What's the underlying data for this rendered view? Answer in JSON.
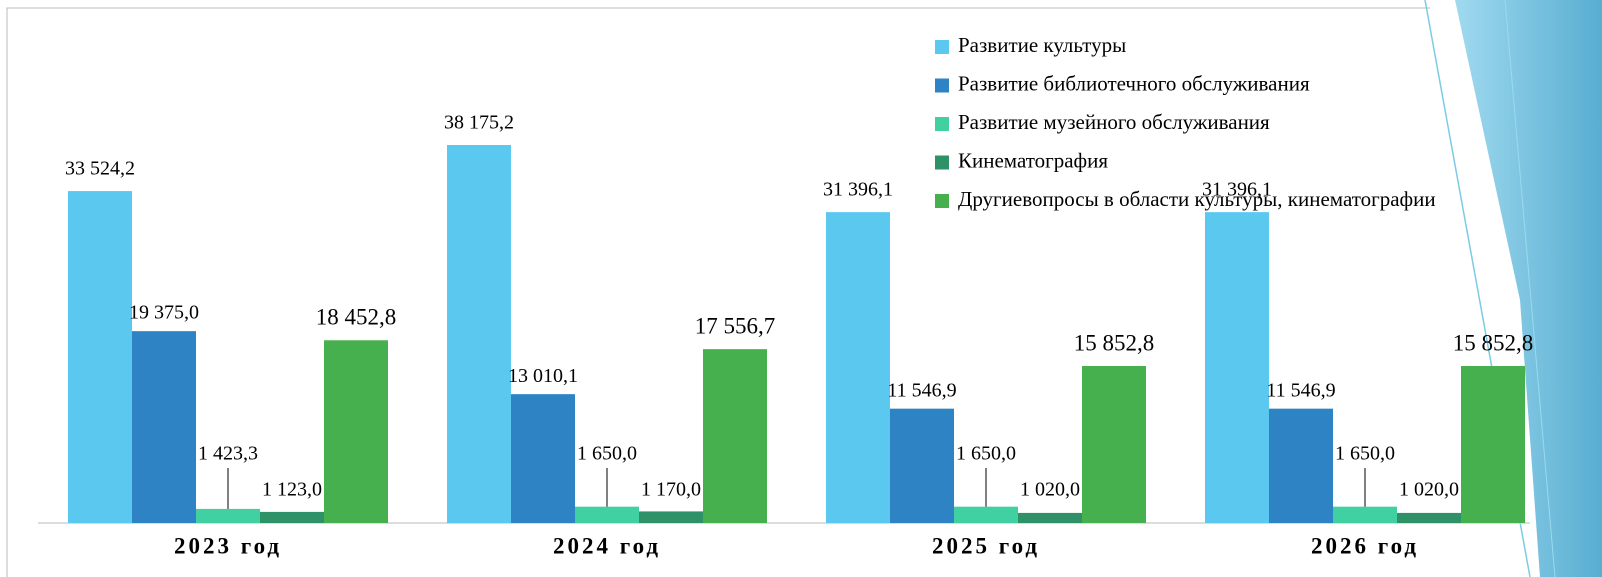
{
  "chart_data": {
    "type": "bar",
    "categories": [
      "2023 год",
      "2024 год",
      "2025 год",
      "2026 год"
    ],
    "series": [
      {
        "name": "Развитие культуры",
        "color": "#5bc9ef",
        "values": [
          33524.2,
          38175.2,
          31396.1,
          31396.1
        ],
        "value_labels": [
          "33 524,2",
          "38 175,2",
          "31 396,1",
          "31 396,1"
        ]
      },
      {
        "name": "Развитие библиотечного обслуживания",
        "color": "#2e83c4",
        "values": [
          19375.0,
          13010.1,
          11546.9,
          11546.9
        ],
        "value_labels": [
          "19 375,0",
          "13 010,1",
          "11 546,9",
          "11 546,9"
        ]
      },
      {
        "name": "Развитие музейного обслуживания",
        "color": "#40d0a2",
        "values": [
          1423.3,
          1650.0,
          1650.0,
          1650.0
        ],
        "value_labels": [
          "1 423,3",
          "1 650,0",
          "1 650,0",
          "1 650,0"
        ]
      },
      {
        "name": "Кинематография",
        "color": "#2e9167",
        "values": [
          1123.0,
          1170.0,
          1020.0,
          1020.0
        ],
        "value_labels": [
          "1 123,0",
          "1 170,0",
          "1 020,0",
          "1 020,0"
        ]
      },
      {
        "name": "Другиевопросы в области культуры, кинематографии",
        "color": "#46b04f",
        "values": [
          18452.8,
          17556.7,
          15852.8,
          15852.8
        ],
        "value_labels": [
          "18 452,8",
          "17 556,7",
          "15 852,8",
          "15 852,8"
        ]
      }
    ],
    "legend": "top-right"
  }
}
